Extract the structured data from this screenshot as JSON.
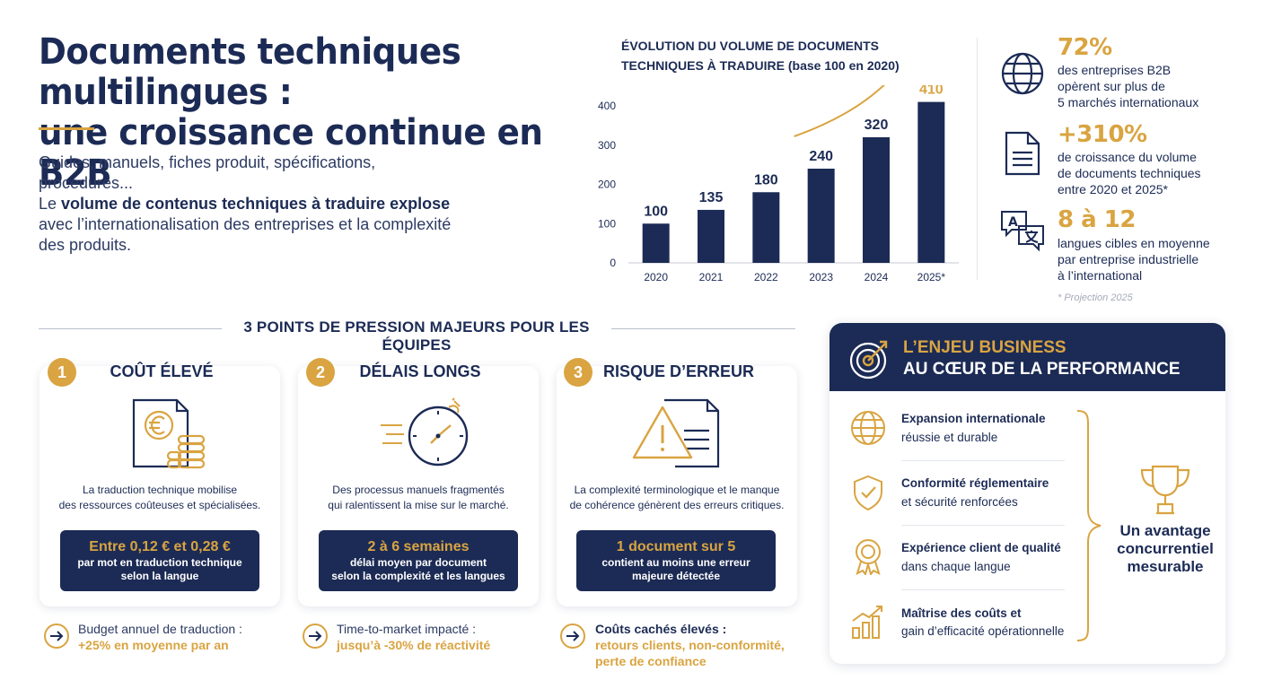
{
  "header": {
    "title_line1": "Documents techniques multilingues :",
    "title_line2": "une croissance continue en B2B",
    "intro_line1": "Guides, manuels, fiches produit, spécifications, procédures...",
    "intro_line2_prefix": "Le ",
    "intro_line2_bold": "volume de contenus techniques à traduire explose",
    "intro_line3": "avec l’internationalisation des entreprises et la complexité",
    "intro_line4": "des produits."
  },
  "chart_data": {
    "type": "bar",
    "title": "ÉVOLUTION DU VOLUME DE DOCUMENTS TECHNIQUES À TRADUIRE (base 100 en 2020)",
    "title_line1": "ÉVOLUTION DU VOLUME DE DOCUMENTS",
    "title_line2": "TECHNIQUES À TRADUIRE (base 100 en 2020)",
    "categories": [
      "2020",
      "2021",
      "2022",
      "2023",
      "2024",
      "2025*"
    ],
    "values": [
      100,
      135,
      180,
      240,
      320,
      410
    ],
    "ylim": [
      0,
      400
    ],
    "yticks": [
      "0",
      "100",
      "200",
      "300",
      "400"
    ],
    "bar_color": "#1c2b55",
    "last_label_color": "#d9a441",
    "trend_arrow_color": "#d9a441",
    "grid": false
  },
  "stats": [
    {
      "icon": "globe-icon",
      "value": "72%",
      "lines": [
        "des entreprises B2B",
        "opèrent sur plus de",
        "5 marchés internationaux"
      ]
    },
    {
      "icon": "document-icon",
      "value": "+310%",
      "lines": [
        "de croissance du volume",
        "de documents techniques",
        "entre 2020 et 2025*"
      ]
    },
    {
      "icon": "translate-bubble-icon",
      "value": "8 à 12",
      "lines": [
        "langues cibles en moyenne",
        "par entreprise industrielle",
        "à l’international"
      ]
    }
  ],
  "stats_note": "* Projection 2025",
  "section_title": "3 POINTS DE PRESSION MAJEURS POUR LES ÉQUIPES",
  "cards": [
    {
      "number": "1",
      "title": "COÛT ÉLEVÉ",
      "icon": "invoice-euro-coins-icon",
      "desc_line1": "La traduction technique mobilise",
      "desc_line2": "des ressources coûteuses et spécialisées.",
      "box_hi": "Entre 0,12 € et 0,28 €",
      "box_lo1": "par mot en traduction technique",
      "box_lo2": "selon la langue",
      "foot_line1": "Budget annuel de traduction :",
      "foot_gold": "+25% en moyenne par an"
    },
    {
      "number": "2",
      "title": "DÉLAIS LONGS",
      "icon": "clock-speed-icon",
      "desc_line1": "Des processus manuels fragmentés",
      "desc_line2": "qui ralentissent la mise sur le marché.",
      "box_hi": "2 à 6 semaines",
      "box_lo1": "délai moyen par document",
      "box_lo2": "selon la complexité et les langues",
      "foot_line1": "Time-to-market impacté :",
      "foot_gold": "jusqu’à -30% de réactivité"
    },
    {
      "number": "3",
      "title": "RISQUE D’ERREUR",
      "icon": "warning-document-icon",
      "desc_line1": "La complexité terminologique et le manque",
      "desc_line2": "de cohérence génèrent des erreurs critiques.",
      "box_hi": "1 document sur 5",
      "box_lo1": "contient au moins une erreur",
      "box_lo2": "majeure détectée",
      "foot_line1": "Coûts cachés élevés :",
      "foot_gold": "retours clients, non-conformité,",
      "foot_gold2": "perte de confiance"
    }
  ],
  "business": {
    "title_line1": "L’ENJEU BUSINESS",
    "title_line2": "AU CŒUR DE LA PERFORMANCE",
    "items": [
      {
        "icon": "globe-icon",
        "bold": "Expansion internationale",
        "text": "réussie et durable"
      },
      {
        "icon": "shield-check-icon",
        "bold": "Conformité réglementaire",
        "text": "et sécurité renforcées"
      },
      {
        "icon": "award-ribbon-icon",
        "bold": "Expérience client de qualité",
        "text": "dans chaque langue"
      },
      {
        "icon": "growth-chart-icon",
        "bold": "Maîtrise des coûts et",
        "text": "gain d’efficacité opérationnelle"
      }
    ],
    "conclusion_line1": "Un avantage",
    "conclusion_line2": "concurrentiel",
    "conclusion_line3": "mesurable"
  },
  "colors": {
    "navy": "#1c2b55",
    "gold": "#d9a441"
  }
}
